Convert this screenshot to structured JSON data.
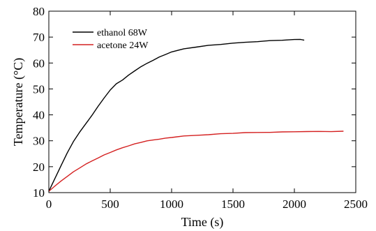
{
  "chart_data": {
    "type": "line",
    "xlabel": "Time (s)",
    "ylabel": "Temperature (°C)",
    "xlim": [
      0,
      2500
    ],
    "ylim": [
      10,
      80
    ],
    "xticks": [
      0,
      500,
      1000,
      1500,
      2000,
      2500
    ],
    "yticks": [
      10,
      20,
      30,
      40,
      50,
      60,
      70,
      80
    ],
    "grid": false,
    "legend_position": "top-left",
    "series": [
      {
        "name": "ethanol 68W",
        "color": "#000000",
        "x": [
          0,
          50,
          100,
          150,
          200,
          250,
          300,
          350,
          400,
          450,
          500,
          550,
          600,
          650,
          700,
          750,
          800,
          850,
          900,
          950,
          1000,
          1100,
          1200,
          1300,
          1400,
          1500,
          1600,
          1700,
          1800,
          1900,
          2000,
          2050,
          2080
        ],
        "y": [
          10.5,
          15.5,
          20.5,
          25.3,
          29.7,
          33.2,
          36.5,
          39.8,
          43.2,
          46.5,
          49.5,
          52.0,
          53.5,
          55.3,
          57.0,
          58.5,
          59.9,
          61.1,
          62.3,
          63.3,
          64.2,
          65.5,
          66.2,
          66.8,
          67.2,
          67.6,
          68.0,
          68.3,
          68.6,
          68.8,
          69.0,
          69.1,
          68.8
        ]
      },
      {
        "name": "acetone 24W",
        "color": "#d42020",
        "x": [
          0,
          50,
          100,
          150,
          200,
          250,
          300,
          350,
          400,
          450,
          500,
          550,
          600,
          650,
          700,
          750,
          800,
          850,
          900,
          950,
          1000,
          1100,
          1200,
          1300,
          1400,
          1500,
          1600,
          1700,
          1800,
          1900,
          2000,
          2100,
          2200,
          2300,
          2400
        ],
        "y": [
          10.5,
          12.5,
          14.5,
          16.3,
          18.0,
          19.5,
          20.9,
          22.2,
          23.4,
          24.5,
          25.5,
          26.4,
          27.3,
          28.1,
          28.8,
          29.4,
          29.9,
          30.3,
          30.7,
          31.0,
          31.3,
          31.8,
          32.1,
          32.4,
          32.7,
          32.9,
          33.1,
          33.2,
          33.3,
          33.4,
          33.5,
          33.5,
          33.6,
          33.6,
          33.7
        ]
      }
    ]
  }
}
